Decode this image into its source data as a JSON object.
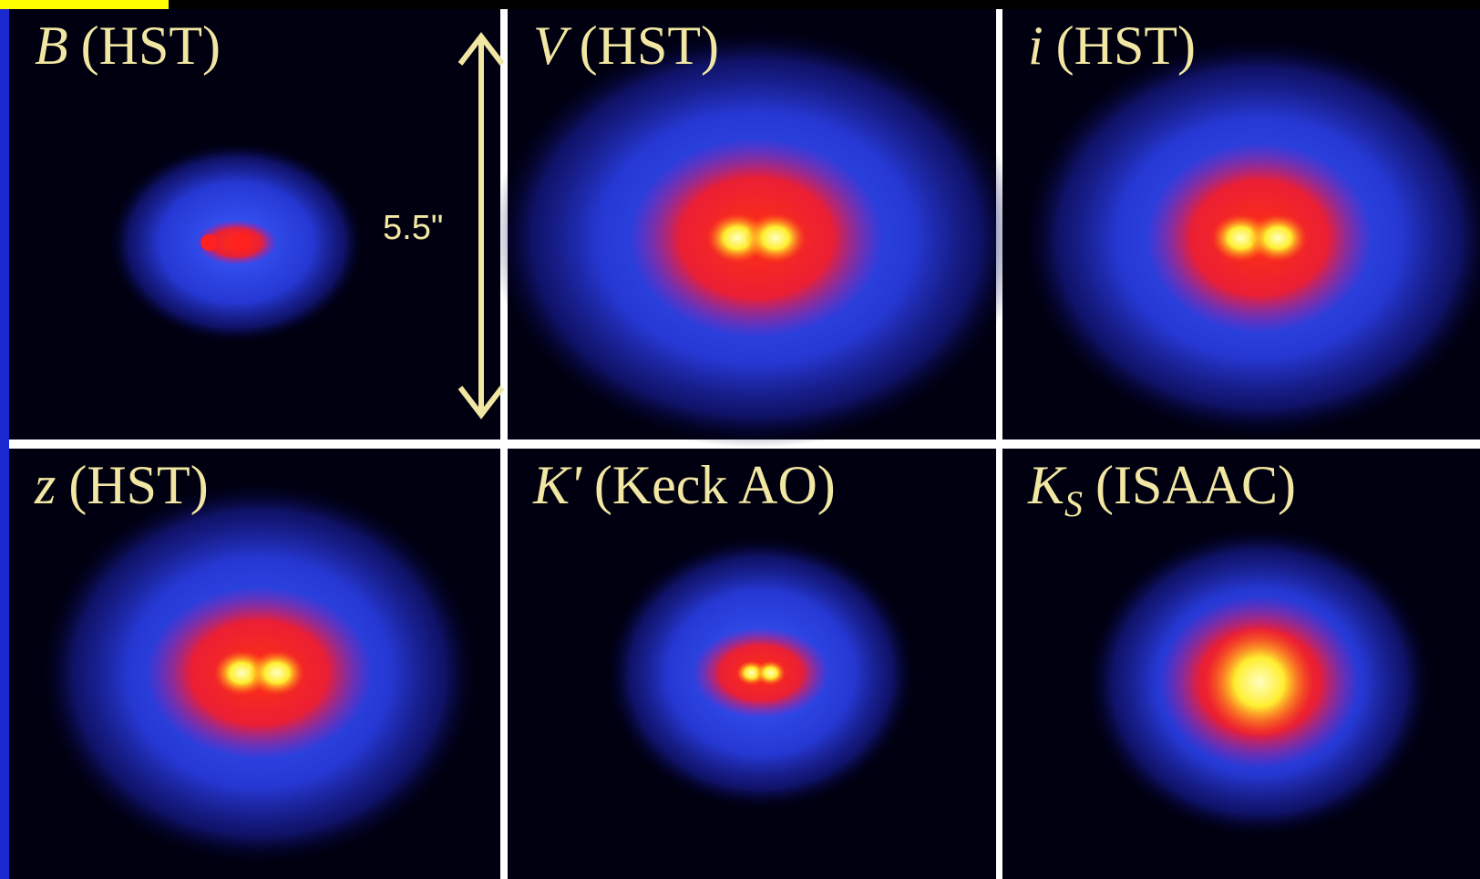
{
  "panels": [
    {
      "band": "B",
      "rest": "(HST)"
    },
    {
      "band": "V",
      "rest": "(HST)"
    },
    {
      "band": "i",
      "rest": "(HST)"
    },
    {
      "band": "z",
      "rest": "(HST)"
    },
    {
      "band": "K'",
      "rest": "(Keck AO)"
    },
    {
      "band": "K",
      "sub": "S",
      "rest": "(ISAAC)"
    }
  ],
  "scale_label": "5.5\""
}
